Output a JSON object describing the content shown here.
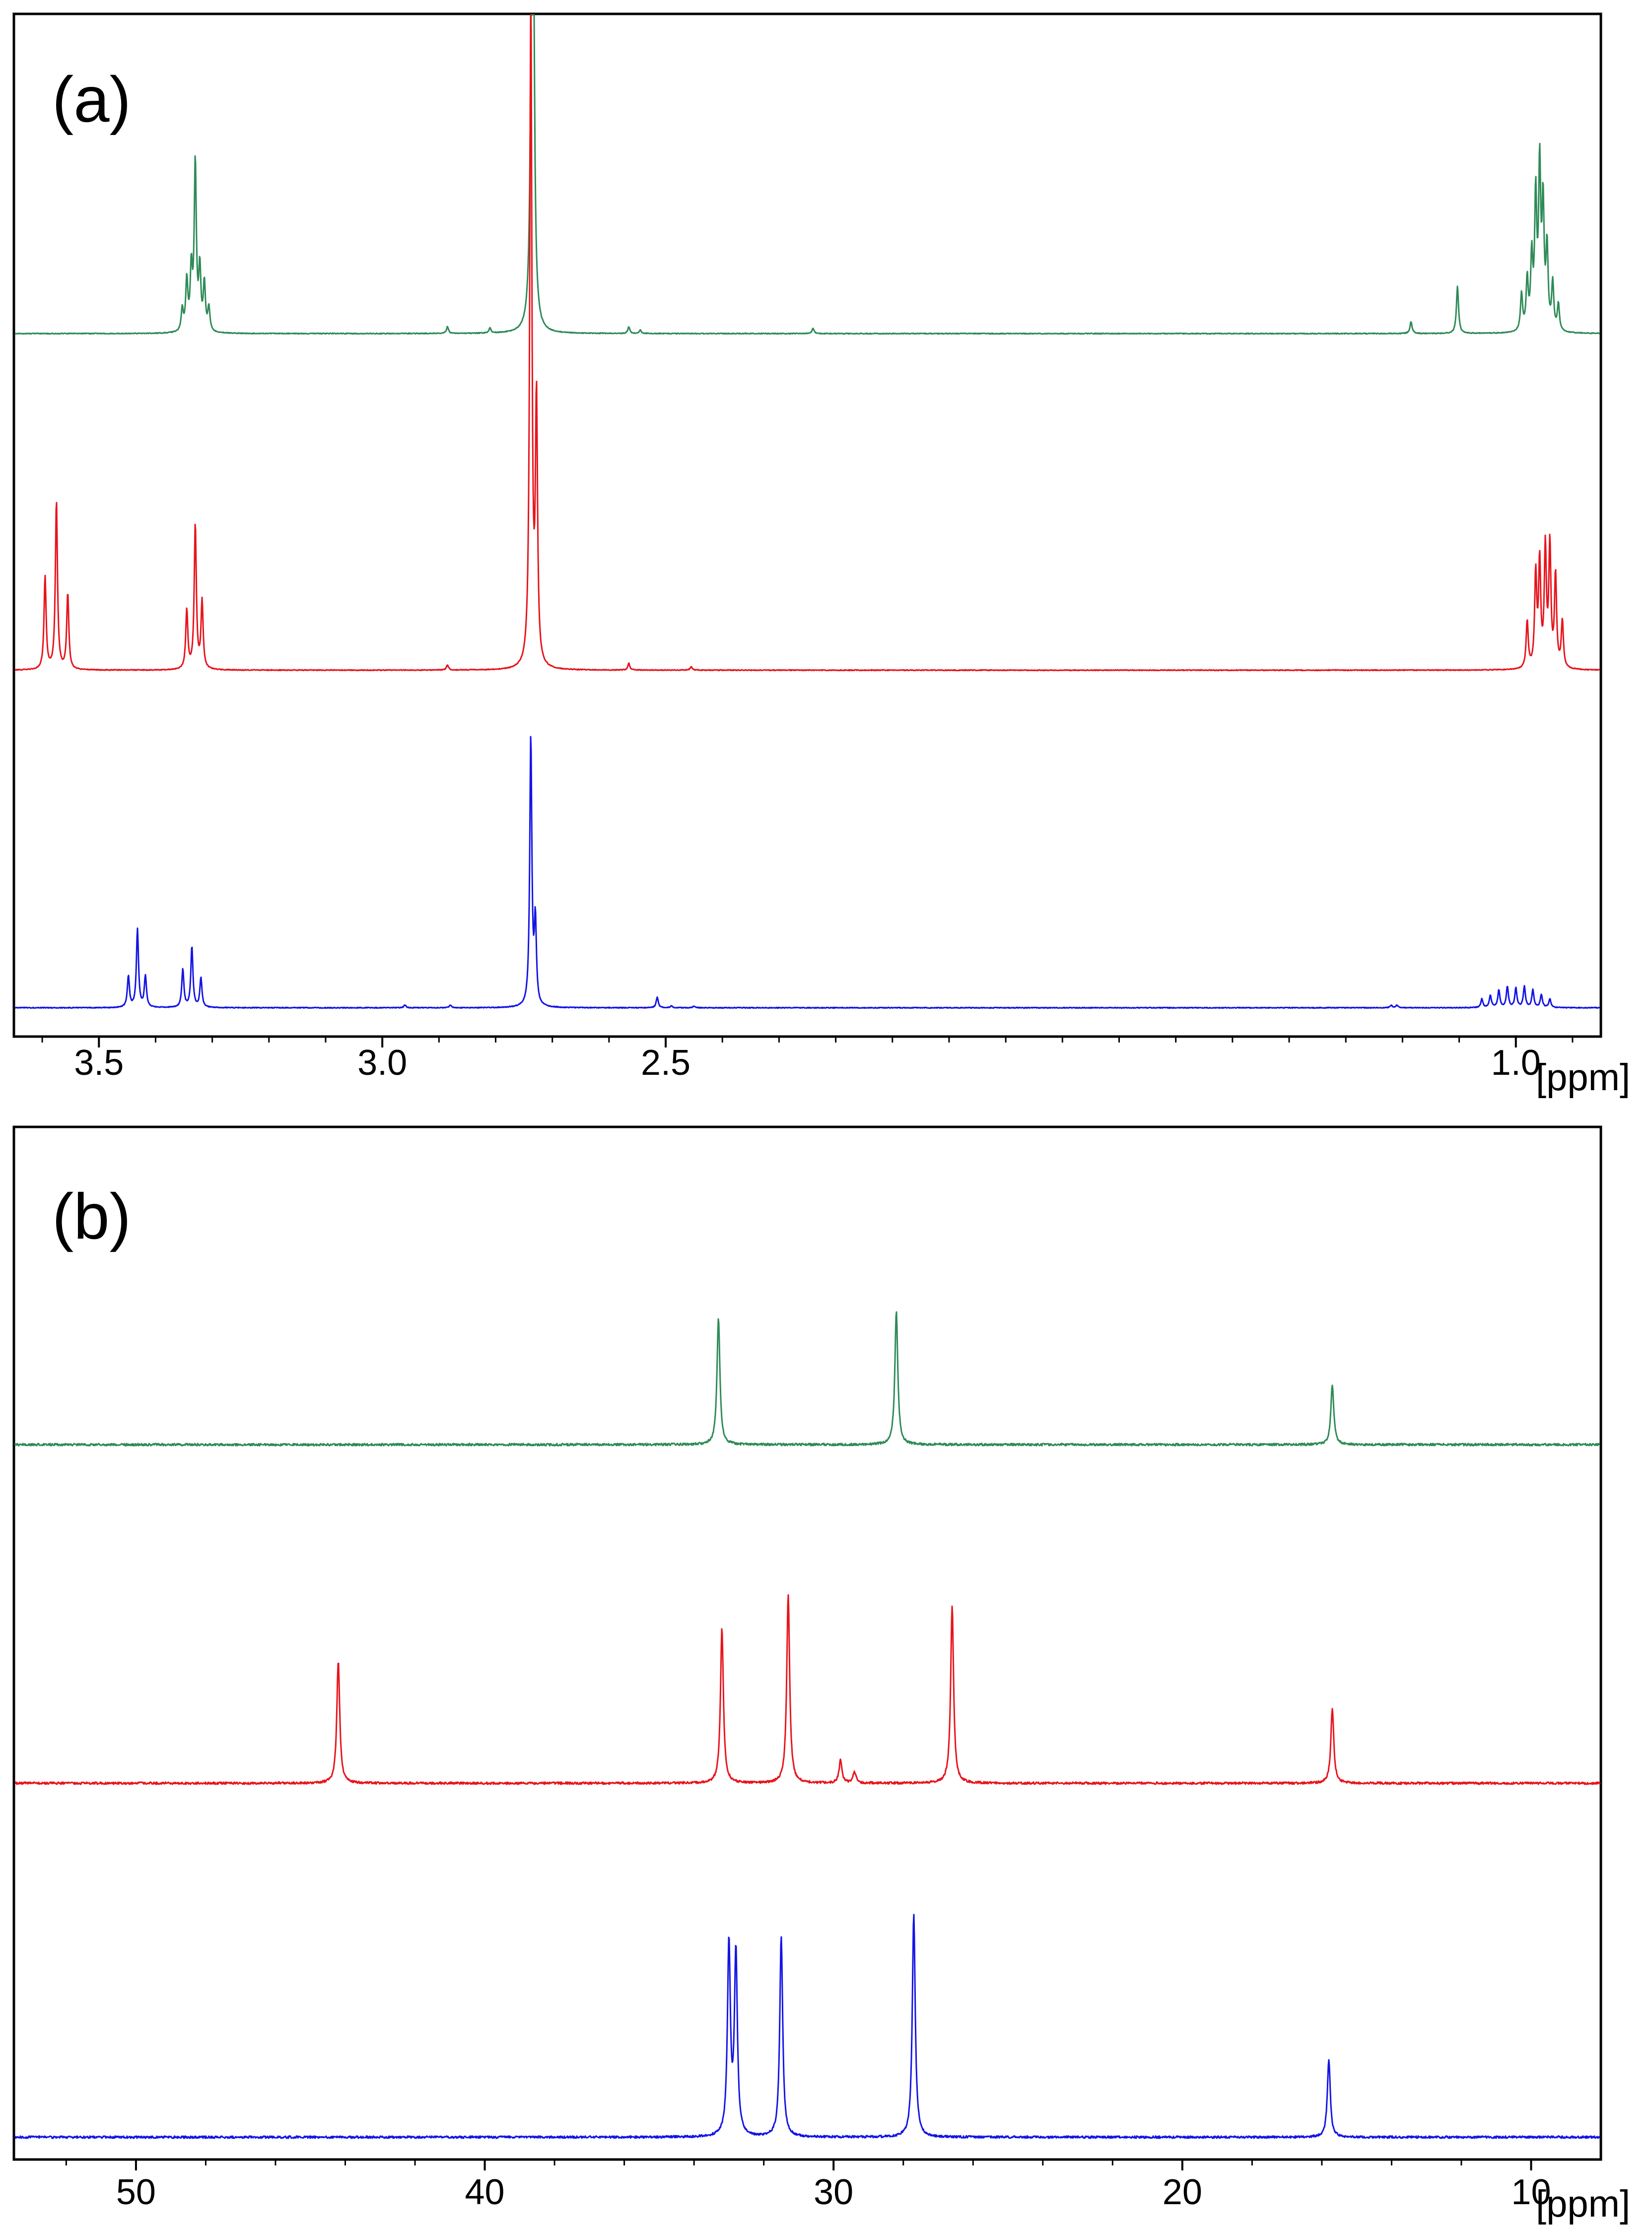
{
  "chart_data": [
    {
      "type": "line",
      "panel_label": "(a)",
      "xlabel": "[ppm]",
      "x_reversed": true,
      "xlim": [
        3.65,
        0.85
      ],
      "tick_labels": [
        "3.5",
        "3.0",
        "2.5",
        "1.0"
      ],
      "series": [
        {
          "color": "#2e8b57",
          "peaks": [
            {
              "x": 3.353,
              "h": 0.13
            },
            {
              "x": 3.345,
              "h": 0.3
            },
            {
              "x": 3.337,
              "h": 0.36
            },
            {
              "x": 3.33,
              "h": 1.0
            },
            {
              "x": 3.322,
              "h": 0.36
            },
            {
              "x": 3.314,
              "h": 0.28
            },
            {
              "x": 3.306,
              "h": 0.14
            },
            {
              "x": 2.885,
              "h": 0.04
            },
            {
              "x": 2.81,
              "h": 0.03
            },
            {
              "x": 2.735,
              "h": 5.5
            },
            {
              "x": 2.565,
              "h": 0.04
            },
            {
              "x": 2.545,
              "h": 0.02
            },
            {
              "x": 2.24,
              "h": 0.03
            },
            {
              "x": 1.185,
              "h": 0.07
            },
            {
              "x": 1.103,
              "h": 0.28
            },
            {
              "x": 0.99,
              "h": 0.22
            },
            {
              "x": 0.98,
              "h": 0.3
            },
            {
              "x": 0.972,
              "h": 0.42
            },
            {
              "x": 0.965,
              "h": 0.78
            },
            {
              "x": 0.958,
              "h": 0.95
            },
            {
              "x": 0.952,
              "h": 0.72
            },
            {
              "x": 0.945,
              "h": 0.48
            },
            {
              "x": 0.935,
              "h": 0.28
            },
            {
              "x": 0.925,
              "h": 0.16
            }
          ]
        },
        {
          "color": "#e8141c",
          "peaks": [
            {
              "x": 3.595,
              "h": 0.55
            },
            {
              "x": 3.575,
              "h": 1.0
            },
            {
              "x": 3.555,
              "h": 0.45
            },
            {
              "x": 3.345,
              "h": 0.35
            },
            {
              "x": 3.33,
              "h": 0.86
            },
            {
              "x": 3.318,
              "h": 0.4
            },
            {
              "x": 2.885,
              "h": 0.03
            },
            {
              "x": 2.738,
              "h": 4.0
            },
            {
              "x": 2.728,
              "h": 1.55
            },
            {
              "x": 2.565,
              "h": 0.04
            },
            {
              "x": 2.455,
              "h": 0.02
            },
            {
              "x": 0.98,
              "h": 0.28
            },
            {
              "x": 0.965,
              "h": 0.55
            },
            {
              "x": 0.958,
              "h": 0.62
            },
            {
              "x": 0.948,
              "h": 0.7
            },
            {
              "x": 0.94,
              "h": 0.72
            },
            {
              "x": 0.93,
              "h": 0.55
            },
            {
              "x": 0.918,
              "h": 0.28
            }
          ]
        },
        {
          "color": "#1414e6",
          "peaks": [
            {
              "x": 3.448,
              "h": 0.36
            },
            {
              "x": 3.432,
              "h": 0.9
            },
            {
              "x": 3.418,
              "h": 0.36
            },
            {
              "x": 3.352,
              "h": 0.44
            },
            {
              "x": 3.336,
              "h": 0.7
            },
            {
              "x": 3.32,
              "h": 0.34
            },
            {
              "x": 2.96,
              "h": 0.03
            },
            {
              "x": 2.88,
              "h": 0.03
            },
            {
              "x": 2.738,
              "h": 3.1
            },
            {
              "x": 2.73,
              "h": 0.95
            },
            {
              "x": 2.515,
              "h": 0.12
            },
            {
              "x": 2.49,
              "h": 0.02
            },
            {
              "x": 2.45,
              "h": 0.02
            },
            {
              "x": 1.22,
              "h": 0.03
            },
            {
              "x": 1.21,
              "h": 0.03
            },
            {
              "x": 1.06,
              "h": 0.1
            },
            {
              "x": 1.045,
              "h": 0.14
            },
            {
              "x": 1.03,
              "h": 0.2
            },
            {
              "x": 1.015,
              "h": 0.24
            },
            {
              "x": 1.0,
              "h": 0.22
            },
            {
              "x": 0.985,
              "h": 0.24
            },
            {
              "x": 0.97,
              "h": 0.2
            },
            {
              "x": 0.955,
              "h": 0.15
            },
            {
              "x": 0.94,
              "h": 0.1
            }
          ]
        }
      ]
    },
    {
      "type": "line",
      "panel_label": "(b)",
      "xlabel": "[ppm]",
      "x_reversed": true,
      "xlim": [
        53.5,
        8.0
      ],
      "tick_labels": [
        "50",
        "40",
        "30",
        "20",
        "10"
      ],
      "series": [
        {
          "color": "#2e8b57",
          "peaks": [
            {
              "x": 33.3,
              "h": 0.95
            },
            {
              "x": 28.2,
              "h": 1.0
            },
            {
              "x": 15.7,
              "h": 0.45
            }
          ]
        },
        {
          "color": "#e8141c",
          "peaks": [
            {
              "x": 44.2,
              "h": 0.65
            },
            {
              "x": 33.2,
              "h": 0.82
            },
            {
              "x": 31.3,
              "h": 1.0
            },
            {
              "x": 29.8,
              "h": 0.12
            },
            {
              "x": 29.4,
              "h": 0.06
            },
            {
              "x": 26.6,
              "h": 0.94
            },
            {
              "x": 15.7,
              "h": 0.4
            }
          ]
        },
        {
          "color": "#1414e6",
          "peaks": [
            {
              "x": 33.0,
              "h": 0.86
            },
            {
              "x": 32.8,
              "h": 0.82
            },
            {
              "x": 31.5,
              "h": 0.9
            },
            {
              "x": 27.7,
              "h": 1.0
            },
            {
              "x": 15.8,
              "h": 0.35
            }
          ]
        }
      ]
    }
  ]
}
